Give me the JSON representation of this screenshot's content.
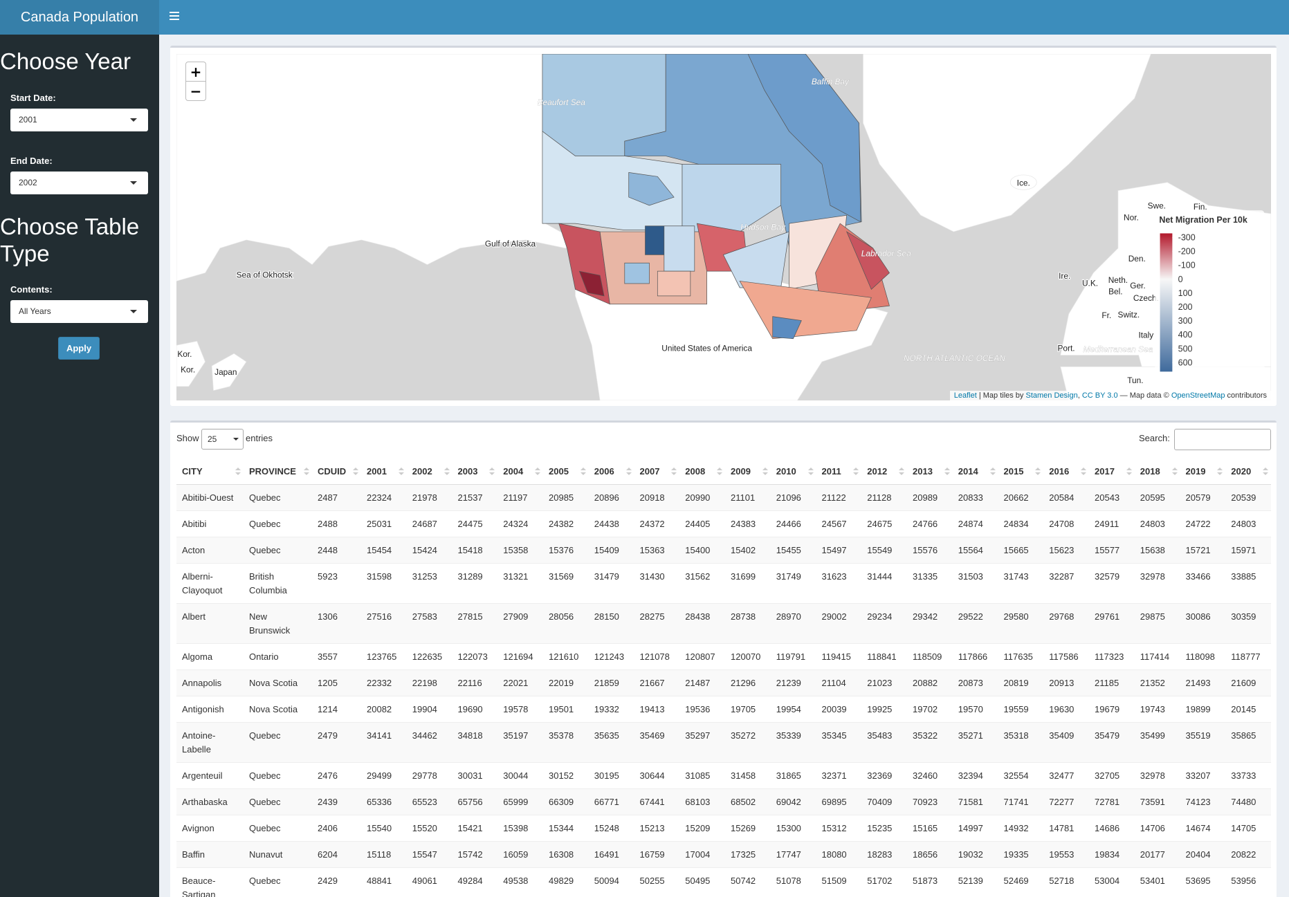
{
  "header": {
    "title": "Canada Population"
  },
  "sidebar": {
    "heading_year": "Choose Year",
    "start_label": "Start Date:",
    "start_value": "2001",
    "end_label": "End Date:",
    "end_value": "2002",
    "heading_table": "Choose Table Type",
    "contents_label": "Contents:",
    "contents_value": "All Years",
    "apply": "Apply"
  },
  "map": {
    "zoom_in": "+",
    "zoom_out": "−",
    "labels": [
      "Beaufort Sea",
      "Baffin Bay",
      "Gulf of Alaska",
      "Sea of Okhotsk",
      "Hudson Bay",
      "Labrador Sea",
      "Ice.",
      "Swe.",
      "Fin.",
      "Nor.",
      "Den.",
      "Ire.",
      "U.K.",
      "Neth.",
      "Bel.",
      "Ger.",
      "Czech.",
      "Fr.",
      "Switz.",
      "Italy",
      "Port.",
      "Mediterranean Sea",
      "Tun.",
      "Kor.",
      "Kor.",
      "Japan",
      "United States of America",
      "NORTH ATLANTIC OCEAN"
    ],
    "legend": {
      "title": "Net Migration Per 10k",
      "range": [
        -300,
        600
      ],
      "ticks": [
        -300,
        -200,
        -100,
        0,
        100,
        200,
        300,
        400,
        500,
        600
      ]
    },
    "attribution": [
      "Leaflet",
      " | Map tiles by ",
      "Stamen Design",
      ", ",
      "CC BY 3.0",
      " — Map data © ",
      "OpenStreetMap",
      " contributors"
    ]
  },
  "table": {
    "show": "Show",
    "page_length": "25",
    "entries": "entries",
    "search": "Search:",
    "columns": [
      "CITY",
      "PROVINCE",
      "CDUID",
      "2001",
      "2002",
      "2003",
      "2004",
      "2005",
      "2006",
      "2007",
      "2008",
      "2009",
      "2010",
      "2011",
      "2012",
      "2013",
      "2014",
      "2015",
      "2016",
      "2017",
      "2018",
      "2019",
      "2020"
    ],
    "rows": [
      [
        "Abitibi-Ouest",
        "Quebec",
        2487,
        22324,
        21978,
        21537,
        21197,
        20985,
        20896,
        20918,
        20990,
        21101,
        21096,
        21122,
        21128,
        20989,
        20833,
        20662,
        20584,
        20543,
        20595,
        20579,
        20539
      ],
      [
        "Abitibi",
        "Quebec",
        2488,
        25031,
        24687,
        24475,
        24324,
        24382,
        24438,
        24372,
        24405,
        24383,
        24466,
        24567,
        24675,
        24766,
        24874,
        24834,
        24708,
        24911,
        24803,
        24722,
        24803
      ],
      [
        "Acton",
        "Quebec",
        2448,
        15454,
        15424,
        15418,
        15358,
        15376,
        15409,
        15363,
        15400,
        15402,
        15455,
        15497,
        15549,
        15576,
        15564,
        15665,
        15623,
        15577,
        15638,
        15721,
        15971
      ],
      [
        "Alberni-Clayoquot",
        "British Columbia",
        5923,
        31598,
        31253,
        31289,
        31321,
        31569,
        31479,
        31430,
        31562,
        31699,
        31749,
        31623,
        31444,
        31335,
        31503,
        31743,
        32287,
        32579,
        32978,
        33466,
        33885
      ],
      [
        "Albert",
        "New Brunswick",
        1306,
        27516,
        27583,
        27815,
        27909,
        28056,
        28150,
        28275,
        28438,
        28738,
        28970,
        29002,
        29234,
        29342,
        29522,
        29580,
        29768,
        29761,
        29875,
        30086,
        30359
      ],
      [
        "Algoma",
        "Ontario",
        3557,
        123765,
        122635,
        122073,
        121694,
        121610,
        121243,
        121078,
        120807,
        120070,
        119791,
        119415,
        118841,
        118509,
        117866,
        117635,
        117586,
        117323,
        117414,
        118098,
        118777
      ],
      [
        "Annapolis",
        "Nova Scotia",
        1205,
        22332,
        22198,
        22116,
        22021,
        22019,
        21859,
        21667,
        21487,
        21296,
        21239,
        21104,
        21023,
        20882,
        20873,
        20819,
        20913,
        21185,
        21352,
        21493,
        21609
      ],
      [
        "Antigonish",
        "Nova Scotia",
        1214,
        20082,
        19904,
        19690,
        19578,
        19501,
        19332,
        19413,
        19536,
        19705,
        19954,
        20039,
        19925,
        19702,
        19570,
        19559,
        19630,
        19679,
        19743,
        19899,
        20145
      ],
      [
        "Antoine-Labelle",
        "Quebec",
        2479,
        34141,
        34462,
        34818,
        35197,
        35378,
        35635,
        35469,
        35297,
        35272,
        35339,
        35345,
        35483,
        35322,
        35271,
        35318,
        35409,
        35479,
        35499,
        35519,
        35865
      ],
      [
        "Argenteuil",
        "Quebec",
        2476,
        29499,
        29778,
        30031,
        30044,
        30152,
        30195,
        30644,
        31085,
        31458,
        31865,
        32371,
        32369,
        32460,
        32394,
        32554,
        32477,
        32705,
        32978,
        33207,
        33733
      ],
      [
        "Arthabaska",
        "Quebec",
        2439,
        65336,
        65523,
        65756,
        65999,
        66309,
        66771,
        67441,
        68103,
        68502,
        69042,
        69895,
        70409,
        70923,
        71581,
        71741,
        72277,
        72781,
        73591,
        74123,
        74480
      ],
      [
        "Avignon",
        "Quebec",
        2406,
        15540,
        15520,
        15421,
        15398,
        15344,
        15248,
        15213,
        15209,
        15269,
        15300,
        15312,
        15235,
        15165,
        14997,
        14932,
        14781,
        14686,
        14706,
        14674,
        14705
      ],
      [
        "Baffin",
        "Nunavut",
        6204,
        15118,
        15547,
        15742,
        16059,
        16308,
        16491,
        16759,
        17004,
        17325,
        17747,
        18080,
        18283,
        18656,
        19032,
        19335,
        19553,
        19834,
        20177,
        20404,
        20822
      ],
      [
        "Beauce-Sartigan",
        "Quebec",
        2429,
        48841,
        49061,
        49284,
        49538,
        49829,
        50094,
        50255,
        50495,
        50742,
        51078,
        51509,
        51702,
        51873,
        52139,
        52469,
        52718,
        53004,
        53401,
        53695,
        53956
      ]
    ]
  }
}
